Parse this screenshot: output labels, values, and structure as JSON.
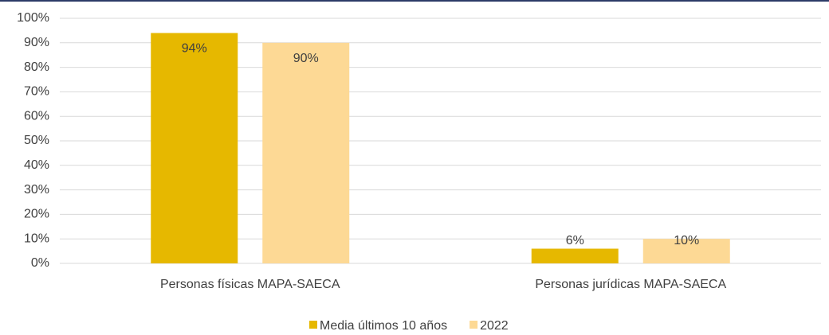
{
  "chart_data": {
    "type": "bar",
    "categories": [
      "Personas físicas MAPA-SAECA",
      "Personas jurídicas MAPA-SAECA"
    ],
    "series": [
      {
        "name": "Media últimos 10 años",
        "color": "#e6b800",
        "values": [
          94,
          6
        ],
        "value_labels": [
          "94%",
          "6%"
        ]
      },
      {
        "name": "2022",
        "color": "#fdd995",
        "values": [
          90,
          10
        ],
        "value_labels": [
          "90%",
          "10%"
        ]
      }
    ],
    "ylim": [
      0,
      100
    ],
    "yticks": [
      {
        "value": 0,
        "label": "0%"
      },
      {
        "value": 10,
        "label": "10%"
      },
      {
        "value": 20,
        "label": "20%"
      },
      {
        "value": 30,
        "label": "30%"
      },
      {
        "value": 40,
        "label": "40%"
      },
      {
        "value": 50,
        "label": "50%"
      },
      {
        "value": 60,
        "label": "60%"
      },
      {
        "value": 70,
        "label": "70%"
      },
      {
        "value": 80,
        "label": "80%"
      },
      {
        "value": 90,
        "label": "90%"
      },
      {
        "value": 100,
        "label": "100%"
      }
    ],
    "grid": true,
    "legend": "bottom"
  }
}
